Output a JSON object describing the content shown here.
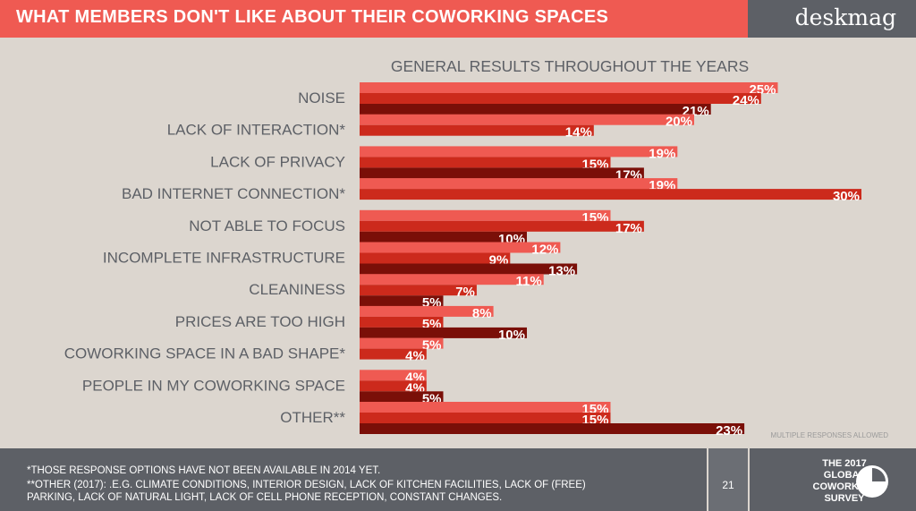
{
  "header": {
    "title": "WHAT MEMBERS DON'T LIKE ABOUT THEIR COWORKING SPACES",
    "brand": "deskmag"
  },
  "chart_data": {
    "type": "bar",
    "orientation": "horizontal",
    "title": "GENERAL RESULTS THROUGHOUT THE YEARS",
    "note": "MULTIPLE RESPONSES ALLOWED",
    "categories": [
      "NOISE",
      "LACK OF INTERACTION*",
      "LACK OF PRIVACY",
      "BAD INTERNET CONNECTION*",
      "NOT ABLE TO FOCUS",
      "INCOMPLETE INFRASTRUCTURE",
      "CLEANINESS",
      "PRICES ARE TOO HIGH",
      "COWORKING SPACE IN A BAD SHAPE*",
      "PEOPLE IN MY COWORKING SPACE",
      "OTHER**"
    ],
    "series": [
      {
        "values": [
          25,
          20,
          19,
          19,
          15,
          12,
          11,
          8,
          5,
          4,
          15
        ],
        "color": "#ef5a52"
      },
      {
        "values": [
          24,
          14,
          15,
          30,
          17,
          9,
          7,
          5,
          4,
          4,
          15
        ],
        "color": "#cc2a1c"
      },
      {
        "values": [
          21,
          null,
          17,
          null,
          10,
          13,
          5,
          10,
          null,
          5,
          23
        ],
        "color": "#7a0f08"
      }
    ],
    "value_suffix": "%",
    "xlim": [
      0,
      30
    ],
    "grid": false
  },
  "footer": {
    "line1": "*THOSE RESPONSE OPTIONS HAVE NOT BEEN AVAILABLE IN 2014 YET.",
    "line2": "**OTHER (2017): .E.G. CLIMATE CONDITIONS, INTERIOR DESIGN, LACK OF KITCHEN FACILITIES, LACK OF (FREE)",
    "line3": "PARKING, LACK OF NATURAL LIGHT, LACK OF CELL PHONE RECEPTION, CONSTANT CHANGES.",
    "page_number": "21",
    "survey": [
      "THE 2017",
      "GLOBAL",
      "COWORKING",
      "SURVEY"
    ]
  },
  "icons": {
    "survey": "pie-chart-icon"
  }
}
